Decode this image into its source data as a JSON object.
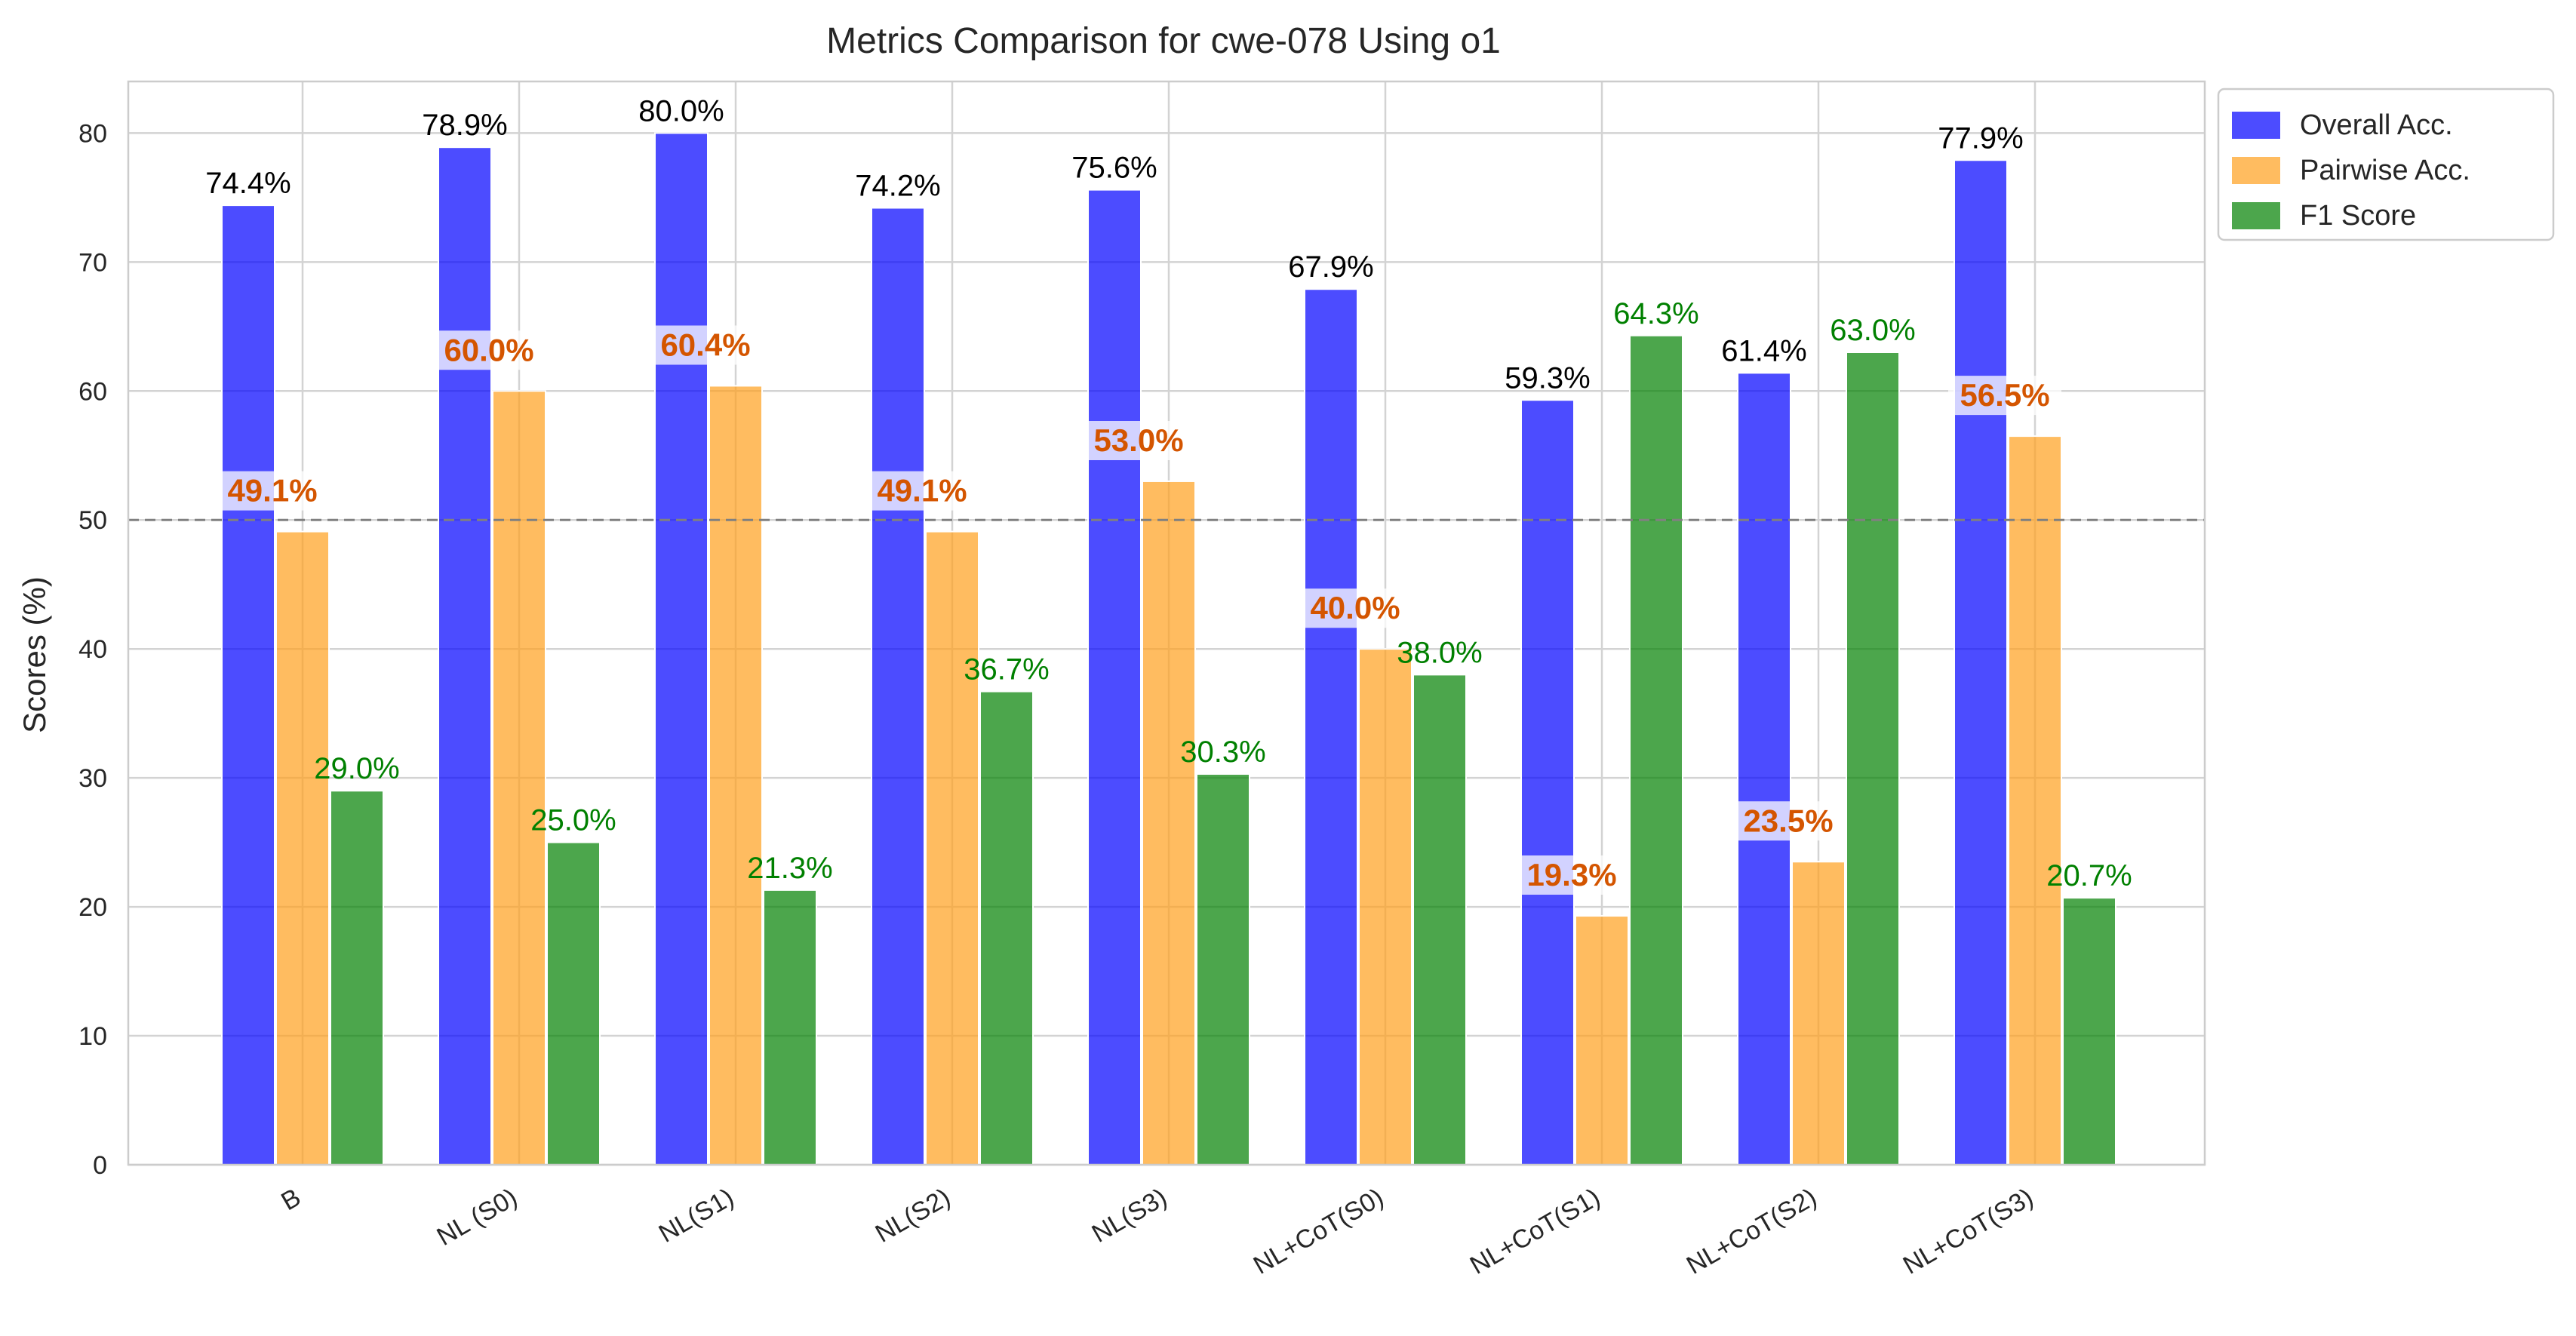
{
  "chart_data": {
    "type": "bar",
    "title": "Metrics Comparison for cwe-078 Using o1",
    "xlabel": "",
    "ylabel": "Scores (%)",
    "ylim": [
      0,
      84
    ],
    "yticks": [
      0,
      10,
      20,
      30,
      40,
      50,
      60,
      70,
      80
    ],
    "reference_line": 50,
    "grid": true,
    "legend_position": "outside-top-right",
    "categories": [
      "B",
      "NL (S0)",
      "NL(S1)",
      "NL(S2)",
      "NL(S3)",
      "NL+CoT(S0)",
      "NL+CoT(S1)",
      "NL+CoT(S2)",
      "NL+CoT(S3)"
    ],
    "series": [
      {
        "name": "Overall Acc.",
        "color": "#0000ff",
        "values": [
          74.4,
          78.9,
          80.0,
          74.2,
          75.6,
          67.9,
          59.3,
          61.4,
          77.9
        ],
        "labels": [
          "74.4%",
          "78.9%",
          "80.0%",
          "74.2%",
          "75.6%",
          "67.9%",
          "59.3%",
          "61.4%",
          "77.9%"
        ]
      },
      {
        "name": "Pairwise Acc.",
        "color": "#ff9f1c",
        "values": [
          49.1,
          60.0,
          60.4,
          49.1,
          53.0,
          40.0,
          19.3,
          23.5,
          56.5
        ],
        "labels": [
          "49.1%",
          "60.0%",
          "60.4%",
          "49.1%",
          "53.0%",
          "40.0%",
          "19.3%",
          "23.5%",
          "56.5%"
        ]
      },
      {
        "name": "F1 Score",
        "color": "#008000",
        "values": [
          29.0,
          25.0,
          21.3,
          36.7,
          30.3,
          38.0,
          64.3,
          63.0,
          20.7
        ],
        "labels": [
          "29.0%",
          "25.0%",
          "21.3%",
          "36.7%",
          "30.3%",
          "38.0%",
          "64.3%",
          "63.0%",
          "20.7%"
        ]
      }
    ]
  }
}
